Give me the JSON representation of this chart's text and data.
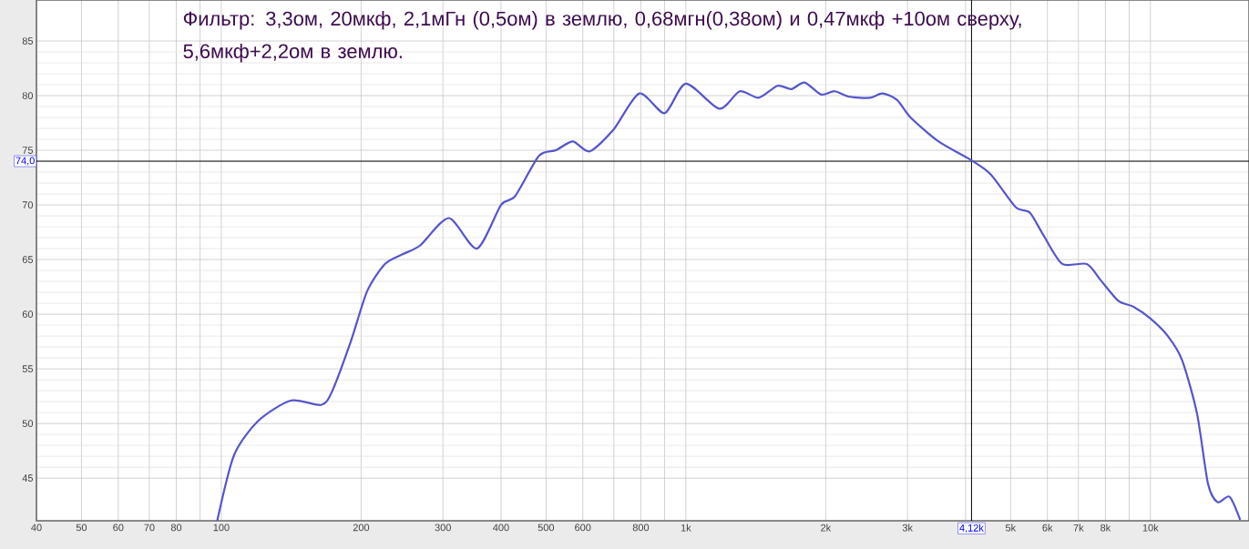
{
  "chart_data": {
    "type": "line",
    "title": "Фильтр: 3,3ом, 20мкф, 2,1мГн (0,5ом) в землю, 0,68мгн(0,38ом) и 0,47мкф +10ом сверху, 5,6мкф+2,2ом в землю.",
    "log": "x",
    "grid": true,
    "marker": "none",
    "line_style": "solid",
    "xlim": [
      40,
      16300
    ],
    "ylim": [
      41.1,
      88.75
    ],
    "xticks": [
      40,
      50,
      60,
      70,
      80,
      {
        "value": 90,
        "label": null
      },
      100,
      200,
      300,
      400,
      500,
      600,
      {
        "value": 700,
        "label": null
      },
      800,
      {
        "value": 900,
        "label": null
      },
      {
        "value": 1000,
        "label": "1k"
      },
      {
        "value": 2000,
        "label": "2k"
      },
      {
        "value": 3000,
        "label": "3k"
      },
      {
        "value": 4000,
        "label": null
      },
      {
        "value": 5000,
        "label": "5k"
      },
      {
        "value": 6000,
        "label": "6k"
      },
      {
        "value": 7000,
        "label": "7k"
      },
      {
        "value": 8000,
        "label": "8k"
      },
      {
        "value": 9000,
        "label": null
      },
      {
        "value": 10000,
        "label": "10k"
      }
    ],
    "yticks": [
      45,
      50,
      55,
      60,
      65,
      70,
      75,
      80,
      85
    ],
    "ref_lines": [
      {
        "axis": "y",
        "value": 74.0,
        "label": "74,0",
        "color": "#000000"
      },
      {
        "axis": "x",
        "value": 4120,
        "label": "4,12k",
        "color": "#000000"
      }
    ],
    "series": [
      {
        "color": "#5555cc",
        "x": [
          98,
          106.5,
          119.8,
          141,
          164,
          173,
          190,
          206,
          225,
          246,
          268,
          309,
          355,
          400,
          429,
          483,
          525,
          571,
          621,
          699,
          794,
          900,
          1000,
          1180,
          1306,
          1434,
          1575,
          1687,
          1801,
          1955,
          2090,
          2250,
          2490,
          2650,
          2850,
          3045,
          3500,
          4110,
          4530,
          5130,
          5500,
          5890,
          6460,
          7300,
          7820,
          8540,
          9180,
          10000,
          10900,
          11700,
          12600,
          13300,
          13950,
          14800,
          15600
        ],
        "values": [
          41.1,
          47.1,
          50.2,
          52.1,
          51.7,
          52.9,
          57.5,
          62.1,
          64.6,
          65.5,
          66.3,
          68.8,
          66.0,
          70.0,
          70.8,
          74.5,
          75.0,
          75.8,
          74.9,
          76.9,
          80.2,
          78.4,
          81.1,
          78.8,
          80.4,
          79.8,
          80.9,
          80.6,
          81.2,
          80.1,
          80.4,
          79.9,
          79.8,
          80.2,
          79.6,
          78.0,
          75.8,
          74.1,
          72.8,
          69.8,
          69.3,
          67.2,
          64.6,
          64.6,
          63.1,
          61.2,
          60.7,
          59.6,
          58.0,
          55.8,
          50.9,
          44.5,
          42.8,
          43.3,
          41.2
        ]
      }
    ]
  }
}
